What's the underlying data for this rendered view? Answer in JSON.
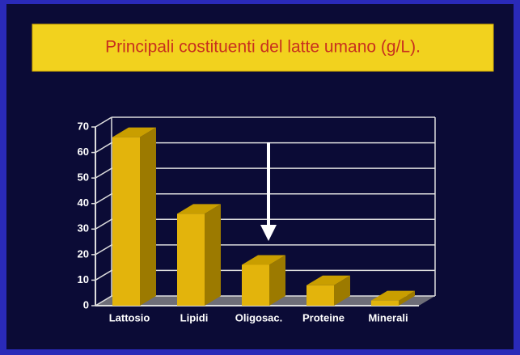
{
  "chart_data": {
    "type": "bar3d",
    "title": "Principali costituenti del latte umano (g/L).",
    "categories": [
      "Lattosio",
      "Lipidi",
      "Oligosac.",
      "Proteine",
      "Minerali"
    ],
    "values": [
      66,
      36,
      16,
      8,
      2
    ],
    "color": "#e3b40c",
    "ylim": [
      0,
      70
    ],
    "yticks": [
      0,
      10,
      20,
      30,
      40,
      50,
      60,
      70
    ],
    "grid": true
  }
}
